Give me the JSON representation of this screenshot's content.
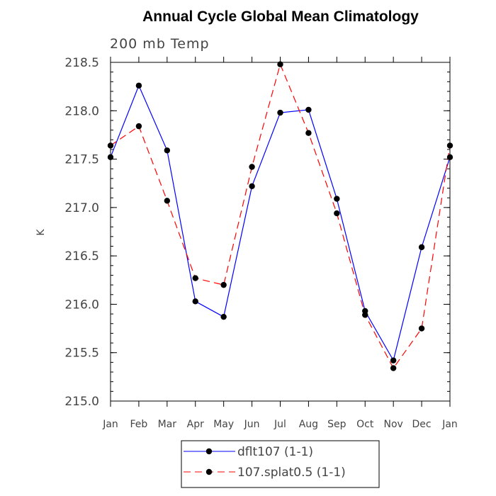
{
  "chart_data": {
    "type": "line",
    "title": "Annual Cycle Global Mean Climatology",
    "subtitle": "200 mb Temp",
    "xlabel": "",
    "ylabel": "K",
    "categories": [
      "Jan",
      "Feb",
      "Mar",
      "Apr",
      "May",
      "Jun",
      "Jul",
      "Aug",
      "Sep",
      "Oct",
      "Nov",
      "Dec",
      "Jan"
    ],
    "ylim": [
      215.0,
      218.5
    ],
    "yticks": [
      "215.0",
      "215.5",
      "216.0",
      "216.5",
      "217.0",
      "217.5",
      "218.0",
      "218.5"
    ],
    "grid": false,
    "legend_position": "bottom",
    "series": [
      {
        "name": "dflt107 (1-1)",
        "color": "#0000ff",
        "dash": "solid",
        "values": [
          217.52,
          218.26,
          217.59,
          216.03,
          215.87,
          217.22,
          217.98,
          218.01,
          217.09,
          215.93,
          215.42,
          216.59,
          217.52
        ]
      },
      {
        "name": "107.splat0.5 (1-1)",
        "color": "#ff0000",
        "dash": "dashed",
        "values": [
          217.64,
          217.84,
          217.07,
          216.27,
          216.2,
          217.42,
          218.48,
          217.77,
          216.94,
          215.89,
          215.34,
          215.75,
          217.64
        ]
      }
    ]
  }
}
